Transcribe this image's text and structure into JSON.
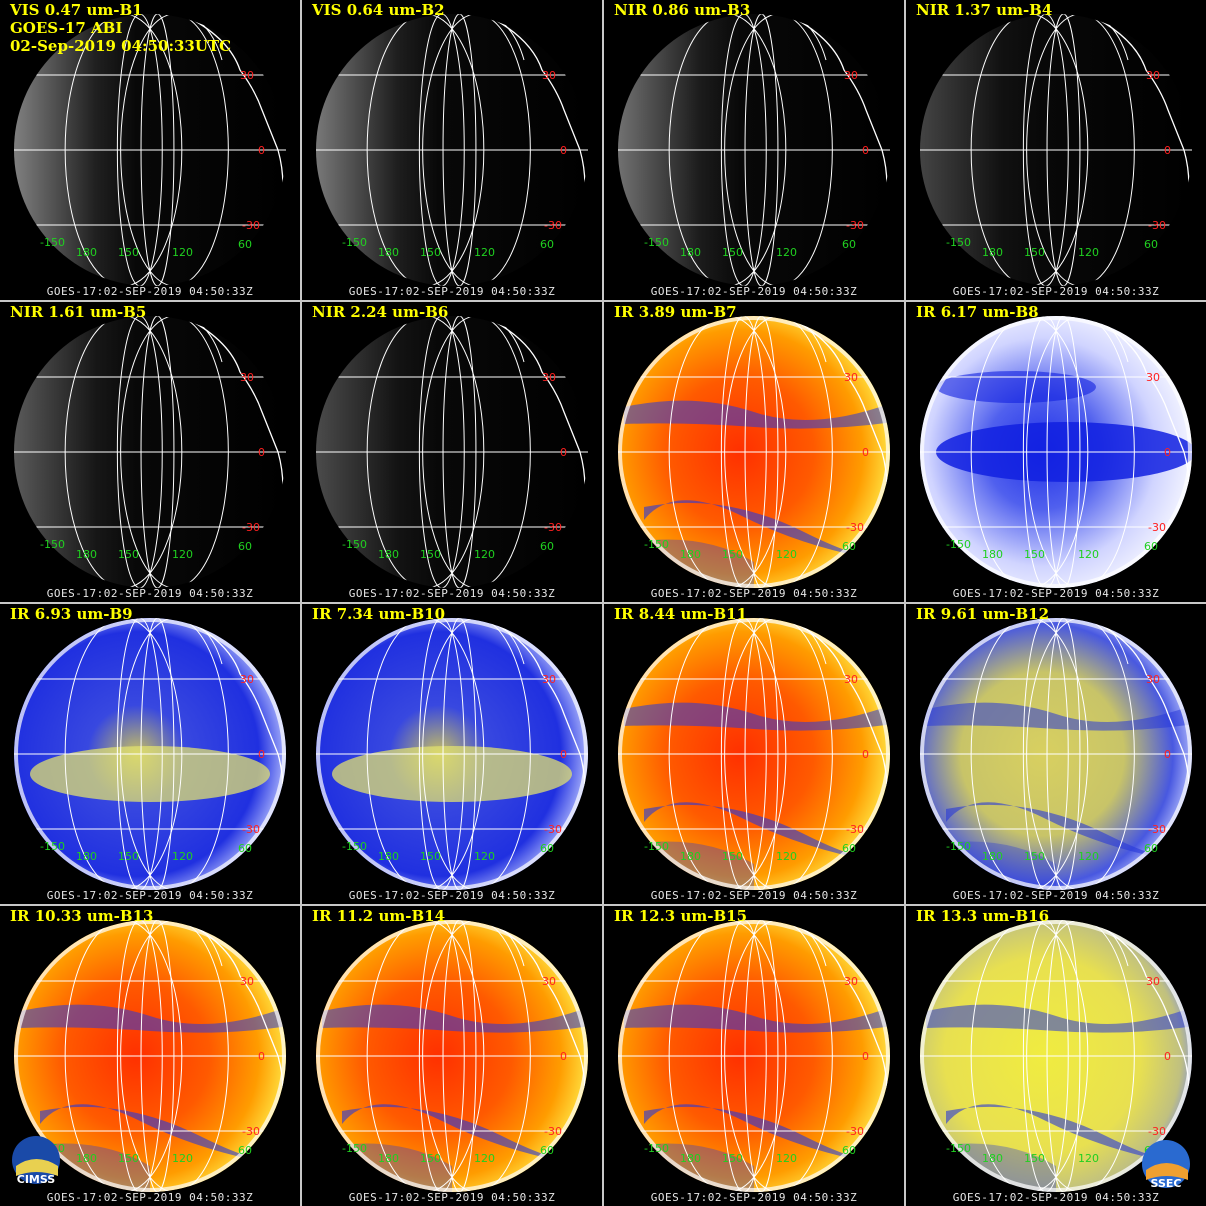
{
  "header": {
    "satellite": "GOES-17 ABI",
    "datetime": "02-Sep-2019 04:50:33UTC"
  },
  "footer_text": "GOES-17:02-SEP-2019 04:50:33Z",
  "grid_labels": {
    "lat": [
      "30",
      "0",
      "-30"
    ],
    "lon": [
      "-150",
      "180",
      "150",
      "120",
      "60"
    ],
    "lat_color": "#ff2020",
    "lon_color": "#20d020"
  },
  "panels": [
    {
      "title": "VIS 0.47 um-B1",
      "type": "vis",
      "brightness": 0.85
    },
    {
      "title": "VIS 0.64 um-B2",
      "type": "vis",
      "brightness": 0.8
    },
    {
      "title": "NIR 0.86 um-B3",
      "type": "vis",
      "brightness": 0.75
    },
    {
      "title": "NIR 1.37 um-B4",
      "type": "vis",
      "brightness": 0.45
    },
    {
      "title": "NIR 1.61 um-B5",
      "type": "vis",
      "brightness": 0.6
    },
    {
      "title": "NIR 2.24 um-B6",
      "type": "vis",
      "brightness": 0.5
    },
    {
      "title": "IR 3.89 um-B7",
      "type": "ir_warm",
      "brightness": 1
    },
    {
      "title": "IR 6.17 um-B8",
      "type": "wv_light",
      "brightness": 1
    },
    {
      "title": "IR 6.93 um-B9",
      "type": "wv",
      "brightness": 1
    },
    {
      "title": "IR 7.34 um-B10",
      "type": "wv",
      "brightness": 1
    },
    {
      "title": "IR 8.44 um-B11",
      "type": "ir_warm",
      "brightness": 1
    },
    {
      "title": "IR 9.61 um-B12",
      "type": "ozone",
      "brightness": 1
    },
    {
      "title": "IR 10.33 um-B13",
      "type": "ir_warm",
      "brightness": 1
    },
    {
      "title": "IR 11.2 um-B14",
      "type": "ir_warm",
      "brightness": 1
    },
    {
      "title": "IR 12.3 um-B15",
      "type": "ir_warm",
      "brightness": 1
    },
    {
      "title": "IR 13.3 um-B16",
      "type": "co2",
      "brightness": 1
    }
  ],
  "logos": {
    "left": "CIMSS",
    "right": "SSEC"
  }
}
